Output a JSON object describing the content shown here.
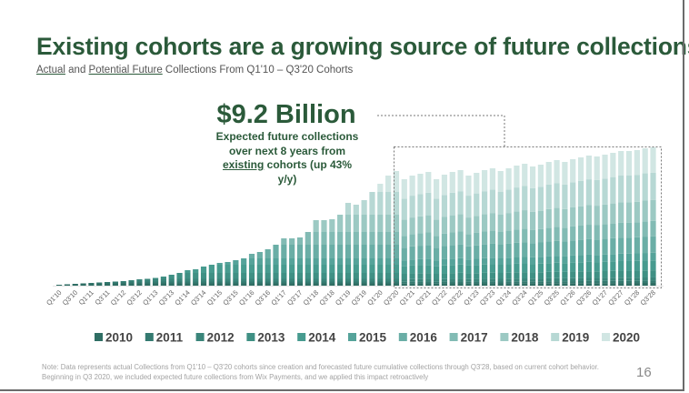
{
  "slide": {
    "title": "Existing cohorts are a growing source of future collections",
    "subtitle_actual": "Actual",
    "subtitle_and": " and ",
    "subtitle_potential": "Potential Future",
    "subtitle_rest": " Collections From Q1'10 – Q3'20 Cohorts",
    "callout_value": "$9.2 Billion",
    "callout_text_1": "Expected future collections over next 8 years from ",
    "callout_text_underlined": "existing",
    "callout_text_2": " cohorts (up 43% y/y)",
    "note_line_1": "Note: Data represents actual Collections from Q1'10 – Q3'20 cohorts since creation and forecasted future cumulative collections through Q3'28, based on current cohort behavior.",
    "note_line_2": "Beginning in Q3 2020, we included expected future collections from Wix Payments, and we applied this impact retroactively",
    "page_number": "16"
  },
  "chart_data": {
    "type": "bar",
    "stacked": true,
    "title": "Actual and Potential Future Collections From Q1'10 – Q3'20 Cohorts",
    "xlabel": "",
    "ylabel": "",
    "value_units": "relative (no axis shown; Q3'28 total = 152)",
    "first_quarter": "Q1'10",
    "last_quarter": "Q3'28",
    "forecast_start": "Q3'20",
    "tick_labels": [
      "Q1'10",
      "Q3'10",
      "Q1'11",
      "Q3'11",
      "Q1'12",
      "Q3'12",
      "Q1'13",
      "Q3'13",
      "Q1'14",
      "Q3'14",
      "Q1'15",
      "Q3'15",
      "Q1'16",
      "Q3'16",
      "Q1'17",
      "Q3'17",
      "Q1'18",
      "Q3'18",
      "Q1'19",
      "Q3'19",
      "Q1'20",
      "Q3'20",
      "Q1'21",
      "Q3'21",
      "Q1'22",
      "Q3'22",
      "Q1'23",
      "Q3'23",
      "Q1'24",
      "Q3'24",
      "Q1'25",
      "Q3'25",
      "Q1'26",
      "Q3'26",
      "Q1'27",
      "Q3'27",
      "Q1'28",
      "Q3'28"
    ],
    "totals": [
      1,
      1.5,
      2,
      2.5,
      3,
      3.5,
      4,
      4.5,
      5,
      6,
      7,
      7.5,
      8.5,
      10,
      12,
      14,
      17,
      18,
      21,
      23,
      25,
      26,
      28,
      30,
      35,
      37,
      40,
      45,
      52,
      52,
      53,
      59,
      72,
      72,
      73,
      78,
      91,
      89,
      94,
      103,
      112,
      121,
      126,
      117,
      121,
      123,
      125,
      117,
      122,
      125,
      127,
      121,
      124,
      127,
      129,
      126,
      129,
      132,
      134,
      131,
      133,
      136,
      138,
      136,
      139,
      141,
      143,
      142,
      144,
      146,
      148,
      148,
      149,
      151,
      152
    ],
    "series": [
      {
        "name": "2010",
        "color": "#2f6e64"
      },
      {
        "name": "2011",
        "color": "#347a70"
      },
      {
        "name": "2012",
        "color": "#3a857a"
      },
      {
        "name": "2013",
        "color": "#3f9084"
      },
      {
        "name": "2014",
        "color": "#479b8f"
      },
      {
        "name": "2015",
        "color": "#55a39a"
      },
      {
        "name": "2016",
        "color": "#6aaea6"
      },
      {
        "name": "2017",
        "color": "#82bbb4"
      },
      {
        "name": "2018",
        "color": "#9cc9c3"
      },
      {
        "name": "2019",
        "color": "#b7d8d4"
      },
      {
        "name": "2020",
        "color": "#d1e6e3"
      }
    ],
    "legend_position": "bottom",
    "grid": false
  }
}
